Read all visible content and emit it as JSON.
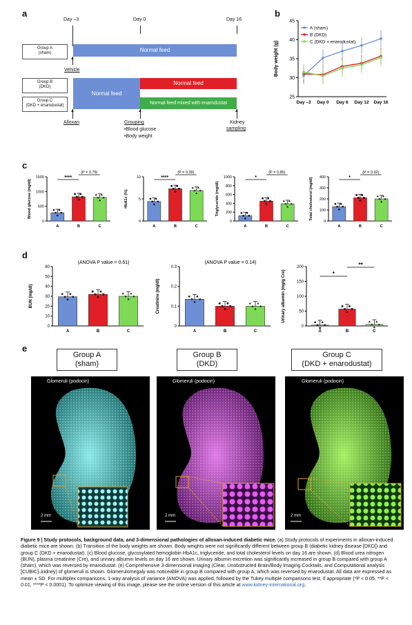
{
  "panel_letters": {
    "a": "a",
    "b": "b",
    "c": "c",
    "d": "d",
    "e": "e"
  },
  "panel_a": {
    "timepoints": [
      "Day –3",
      "Day 0",
      "Day 16"
    ],
    "groups": [
      {
        "name": "Group A",
        "sub": "(sham)"
      },
      {
        "name": "Group B",
        "sub": "(DKD)"
      },
      {
        "name": "Group C",
        "sub": "(DKD + enarodustat)"
      }
    ],
    "bars": {
      "a_feed": "Normal feed",
      "bc_feed": "Normal feed",
      "b_feed": "Normal feed",
      "c_feed": "Normal feed mixed with enarodustat"
    },
    "events": {
      "vehicle": "Vehicle",
      "alloxan": "Alloxan",
      "grouping": "Grouping",
      "grouping_items": [
        "•Blood glucose",
        "•Body weight"
      ],
      "kidney1": "Kidney",
      "kidney2": "sampling"
    },
    "colors": {
      "blue": "#6d8fd6",
      "red": "#e11f26",
      "green": "#3fad49"
    }
  },
  "chart_data": [
    {
      "panel": "b",
      "type": "line",
      "ylabel": "Body weight (g)",
      "categories": [
        "Day –3",
        "Day 0",
        "Day 6",
        "Day 12",
        "Day 16"
      ],
      "ylim": [
        25,
        45
      ],
      "yticks": [
        25,
        30,
        35,
        40,
        45
      ],
      "series": [
        {
          "name": "A (sham)",
          "color": "#6d8fd6",
          "values": [
            30.5,
            35.2,
            37.0,
            38.5,
            40.3
          ]
        },
        {
          "name": "B (DKD)",
          "color": "#e11f26",
          "values": [
            31.0,
            30.8,
            33.0,
            33.8,
            35.7
          ]
        },
        {
          "name": "C (DKD + enarodustat)",
          "color": "#7ed957",
          "values": [
            31.5,
            30.5,
            32.5,
            33.4,
            35.3
          ]
        }
      ]
    },
    {
      "panel": "c",
      "type": "bar",
      "ylabel": "Blood glucose (mg/dl)",
      "categories": [
        "A",
        "B",
        "C"
      ],
      "values": [
        280,
        820,
        800
      ],
      "ylim": [
        0,
        1500
      ],
      "yticks": [
        0,
        500,
        1000,
        1500
      ],
      "annotations": [
        "****",
        "(P = 0.79)"
      ]
    },
    {
      "panel": "c",
      "type": "bar",
      "ylabel": "HbA1c (%)",
      "categories": [
        "A",
        "B",
        "C"
      ],
      "values": [
        4.4,
        7.3,
        6.9
      ],
      "ylim": [
        0,
        10
      ],
      "yticks": [
        0,
        5,
        10
      ],
      "annotations": [
        "****",
        "(P = 0.39)"
      ]
    },
    {
      "panel": "c",
      "type": "bar",
      "ylabel": "Triglyceride (mg/dl)",
      "categories": [
        "A",
        "B",
        "C"
      ],
      "values": [
        120,
        450,
        390
      ],
      "ylim": [
        0,
        1000
      ],
      "yticks": [
        0,
        200,
        400,
        600,
        800,
        1000
      ],
      "annotations": [
        "*",
        "(P = 0.85)"
      ]
    },
    {
      "panel": "c",
      "type": "bar",
      "ylabel": "Total cholesterol (mg/dl)",
      "categories": [
        "A",
        "B",
        "C"
      ],
      "values": [
        130,
        210,
        200
      ],
      "ylim": [
        0,
        400
      ],
      "yticks": [
        0,
        100,
        200,
        300,
        400
      ],
      "annotations": [
        "*",
        "(P = 0.92)"
      ]
    },
    {
      "panel": "d",
      "type": "bar",
      "ylabel": "BUN (mg/dl)",
      "categories": [
        "A",
        "B",
        "C"
      ],
      "values": [
        29.5,
        32,
        30
      ],
      "ylim": [
        0,
        60
      ],
      "yticks": [
        0,
        10,
        20,
        30,
        40,
        50,
        60
      ],
      "annotations": [
        "(ANOVA P value = 0.61)"
      ]
    },
    {
      "panel": "d",
      "type": "bar",
      "ylabel": "Creatinine (mg/dl)",
      "categories": [
        "A",
        "B",
        "C"
      ],
      "values": [
        0.135,
        0.1,
        0.1
      ],
      "ylim": [
        0,
        0.3
      ],
      "yticks": [
        0.0,
        0.1,
        0.2,
        0.3
      ],
      "annotations": [
        "(ANOVA P value = 0.14)"
      ]
    },
    {
      "panel": "d",
      "type": "bar",
      "ylabel": "Urinary albumin (mg/g Cre)",
      "categories": [
        "A",
        "B",
        "C"
      ],
      "values": [
        3,
        57,
        5
      ],
      "ylim": [
        0,
        200
      ],
      "yticks": [
        0,
        50,
        100,
        150,
        200
      ],
      "annotations": [
        "*",
        "**"
      ]
    }
  ],
  "panel_e": {
    "groups": [
      {
        "line1": "Group A",
        "line2": "(sham)",
        "color": "#5fd6d6"
      },
      {
        "line1": "Group B",
        "line2": "(DKD)",
        "color": "#c43fd0"
      },
      {
        "line1": "Group C",
        "line2": "(DKD + enarodustat)",
        "color": "#7ddc3a"
      }
    ],
    "image_label": "Glomeruli (podocin)",
    "scale": "2 mm"
  },
  "caption": {
    "title": "Figure 9 | Study protocols, background data, and 3-dimensional pathologies of alloxan-induced diabetic mice.",
    "body": " (a) Study protocols of experiments in alloxan-induced diabetic mice are shown. (b) Transition of the body weights are shown. Body weights were not significantly different between group B (diabetic kidney disease [DKD]) and group C (DKD + enarodustat). (c) Blood glucose, glycosylated hemoglobin HbA1c, triglyceride, and total cholesterol levels on day 16 are shown. (d) Blood urea nitrogen (BUN), plasma creatinine (Cre), and urinary albumin levels on day 16 are shown. Urinary albumin excretion was significantly increased in group B compared with group A (sham), which was reversed by enarodustat. (e) Comprehensive 3-dimensional imaging (Clear, Unobstructed Brain/Body Imaging Cocktails, and Computational analysis [CUBIC]–kidney) of glomeruli is shown. Glomerulomegaly was noticeable in group B compared with group A, which was reversed by enarodustat. All data are expressed as mean ± SD. For multiplex comparisons, 1-way analysis of variance (ANOVA) was applied, followed by the Tukey multiple comparisons test, if appropriate (*P < 0.05, **P < 0.01, ****P < 0.0001). To optimize viewing of this image, please see the online version of this article at ",
    "link": "www.kidney-international.org",
    "end": "."
  }
}
